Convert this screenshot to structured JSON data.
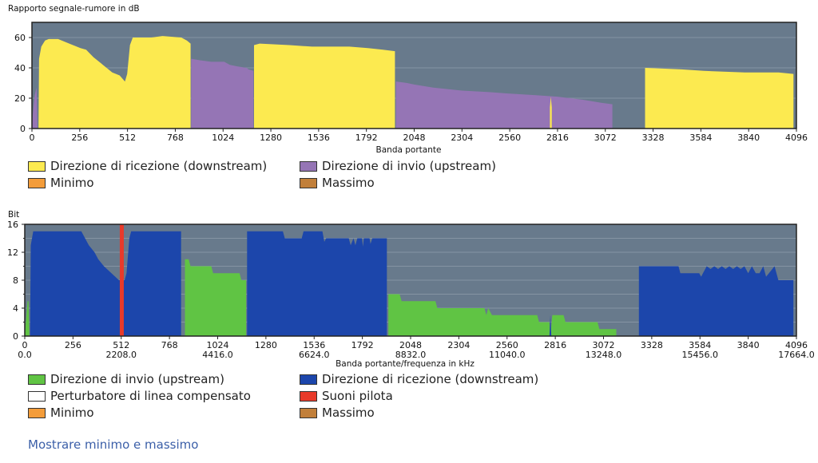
{
  "colors": {
    "plot_bg": "#687a8c",
    "grid": "#8594a3",
    "downstream_yellow": "#fcea50",
    "upstream_purple": "#9575b5",
    "downstream_blue": "#1c46ab",
    "upstream_green": "#60c444",
    "pilot_red": "#e83a2a",
    "minimum": "#f39c3a",
    "maximum": "#c17f3a",
    "crosstalk": "#ffffff"
  },
  "chart_data": [
    {
      "type": "area",
      "title": "Rapporto segnale-rumore in dB",
      "xlabel": "Banda portante",
      "xlim": [
        0,
        4096
      ],
      "ylim": [
        0,
        70
      ],
      "xticks": [
        0,
        256,
        512,
        768,
        1024,
        1280,
        1536,
        1792,
        2048,
        2304,
        2560,
        2816,
        3072,
        3328,
        3584,
        3840,
        4096
      ],
      "yticks": [
        0,
        20,
        40,
        60
      ],
      "grid": true,
      "series": [
        {
          "name": "Direzione di invio (upstream)",
          "color": "#9575b5",
          "segments": [
            [
              [
                0,
                0
              ],
              [
                5,
                10
              ],
              [
                15,
                22
              ],
              [
                25,
                27
              ],
              [
                30,
                0
              ]
            ],
            [
              [
                853,
                46
              ],
              [
                900,
                45
              ],
              [
                960,
                44
              ],
              [
                1030,
                44
              ],
              [
                1060,
                42
              ],
              [
                1100,
                41
              ],
              [
                1150,
                40
              ],
              [
                1160,
                39
              ],
              [
                1187,
                38
              ]
            ],
            [
              [
                1950,
                31
              ],
              [
                2010,
                30
              ],
              [
                2048,
                29
              ],
              [
                2150,
                27
              ],
              [
                2304,
                25
              ],
              [
                2450,
                24
              ],
              [
                2560,
                23
              ],
              [
                2700,
                22
              ],
              [
                2816,
                21
              ],
              [
                2950,
                19
              ],
              [
                3050,
                17
              ],
              [
                3110,
                16
              ]
            ]
          ]
        },
        {
          "name": "Direzione di ricezione (downstream)",
          "color": "#fcea50",
          "segments": [
            [
              [
                35,
                0
              ],
              [
                38,
                46
              ],
              [
                50,
                54
              ],
              [
                70,
                58
              ],
              [
                90,
                59
              ],
              [
                140,
                59
              ],
              [
                200,
                56
              ],
              [
                260,
                53
              ],
              [
                290,
                52
              ],
              [
                330,
                47
              ],
              [
                380,
                42
              ],
              [
                430,
                37
              ],
              [
                470,
                35
              ],
              [
                498,
                31
              ],
              [
                510,
                36
              ],
              [
                525,
                55
              ],
              [
                540,
                60
              ],
              [
                640,
                60
              ],
              [
                700,
                61
              ],
              [
                800,
                60
              ],
              [
                830,
                58
              ],
              [
                850,
                56
              ]
            ],
            [
              [
                1190,
                55
              ],
              [
                1220,
                56
              ],
              [
                1380,
                55
              ],
              [
                1500,
                54
              ],
              [
                1700,
                54
              ],
              [
                1800,
                53
              ],
              [
                1880,
                52
              ],
              [
                1945,
                51
              ]
            ],
            [
              [
                2775,
                14
              ],
              [
                2780,
                21
              ],
              [
                2785,
                14
              ]
            ],
            [
              [
                3285,
                40
              ],
              [
                3480,
                39
              ],
              [
                3600,
                38
              ],
              [
                3820,
                37
              ],
              [
                4000,
                37
              ],
              [
                4080,
                36
              ]
            ]
          ]
        }
      ],
      "legend": [
        "Direzione di ricezione (downstream)",
        "Direzione di invio (upstream)",
        "Minimo",
        "Massimo"
      ]
    },
    {
      "type": "area",
      "title": "Bit",
      "xlabel": "Banda portante/frequenza in kHz",
      "xlim": [
        0,
        4096
      ],
      "ylim": [
        0,
        16
      ],
      "xticks": [
        0,
        256,
        512,
        768,
        1024,
        1280,
        1536,
        1792,
        2048,
        2304,
        2560,
        2816,
        3072,
        3328,
        3584,
        3840,
        4096
      ],
      "freq_ticks": {
        "0": "0.0",
        "512": "2208.0",
        "1024": "4416.0",
        "1536": "6624.0",
        "2048": "8832.0",
        "2560": "11040.0",
        "3072": "13248.0",
        "3584": "15456.0",
        "4096": "17664.0"
      },
      "yticks": [
        0,
        4,
        8,
        12,
        16
      ],
      "grid": true,
      "pilot_tones": [
        515
      ],
      "series": [
        {
          "name": "Direzione di invio (upstream)",
          "color": "#60c444",
          "segments": [
            [
              [
                0,
                0
              ],
              [
                15,
                5
              ],
              [
                20,
                5
              ],
              [
                25,
                0
              ]
            ],
            [
              [
                850,
                11
              ],
              [
                870,
                11
              ],
              [
                880,
                10
              ],
              [
                990,
                10
              ],
              [
                1000,
                9
              ],
              [
                1140,
                9
              ],
              [
                1150,
                8
              ],
              [
                1175,
                8
              ]
            ],
            [
              [
                1930,
                6
              ],
              [
                1990,
                6
              ],
              [
                2000,
                5
              ],
              [
                2180,
                5
              ],
              [
                2190,
                4
              ],
              [
                2440,
                4
              ],
              [
                2450,
                3
              ],
              [
                2460,
                4
              ],
              [
                2480,
                3
              ],
              [
                2720,
                3
              ],
              [
                2730,
                2
              ],
              [
                2785,
                2
              ],
              [
                2790,
                0
              ],
              [
                2800,
                3
              ],
              [
                2860,
                3
              ],
              [
                2870,
                2
              ],
              [
                3040,
                2
              ],
              [
                3050,
                1
              ],
              [
                3140,
                1
              ]
            ]
          ]
        },
        {
          "name": "Direzione di ricezione (downstream)",
          "color": "#1c46ab",
          "segments": [
            [
              [
                28,
                0
              ],
              [
                32,
                13
              ],
              [
                45,
                15
              ],
              [
                300,
                15
              ],
              [
                320,
                14
              ],
              [
                340,
                13
              ],
              [
                370,
                12
              ],
              [
                390,
                11
              ],
              [
                420,
                10
              ],
              [
                460,
                9
              ],
              [
                500,
                8
              ],
              [
                530,
                8
              ],
              [
                540,
                9
              ],
              [
                555,
                14
              ],
              [
                565,
                15
              ],
              [
                830,
                15
              ]
            ],
            [
              [
                1180,
                15
              ],
              [
                1370,
                15
              ],
              [
                1380,
                14
              ],
              [
                1470,
                14
              ],
              [
                1480,
                15
              ],
              [
                1580,
                15
              ],
              [
                1590,
                13.5
              ],
              [
                1600,
                14
              ],
              [
                1720,
                14
              ],
              [
                1730,
                13
              ],
              [
                1745,
                14
              ],
              [
                1755,
                13
              ],
              [
                1765,
                14
              ],
              [
                1790,
                14
              ],
              [
                1795,
                12.8
              ],
              [
                1800,
                14
              ],
              [
                1830,
                14
              ],
              [
                1835,
                13.2
              ],
              [
                1845,
                14
              ],
              [
                1922,
                14
              ]
            ],
            [
              [
                2785,
                0
              ],
              [
                2790,
                3
              ],
              [
                2795,
                0
              ]
            ],
            [
              [
                3260,
                10
              ],
              [
                3470,
                10
              ],
              [
                3480,
                9
              ],
              [
                3580,
                9
              ],
              [
                3590,
                8.5
              ],
              [
                3600,
                9
              ],
              [
                3620,
                10
              ],
              [
                3640,
                9.6
              ],
              [
                3660,
                10
              ],
              [
                3680,
                9.6
              ],
              [
                3700,
                10
              ],
              [
                3720,
                9.6
              ],
              [
                3740,
                10
              ],
              [
                3760,
                9.6
              ],
              [
                3780,
                10
              ],
              [
                3800,
                9.6
              ],
              [
                3820,
                10
              ],
              [
                3840,
                9
              ],
              [
                3860,
                10
              ],
              [
                3880,
                9
              ],
              [
                3900,
                9
              ],
              [
                3920,
                10
              ],
              [
                3935,
                8.5
              ],
              [
                3950,
                9
              ],
              [
                3980,
                10
              ],
              [
                4000,
                8
              ],
              [
                4080,
                8
              ]
            ]
          ]
        }
      ],
      "legend": [
        "Direzione di invio (upstream)",
        "Direzione di ricezione (downstream)",
        "Perturbatore di linea compensato",
        "Suoni pilota",
        "Minimo",
        "Massimo"
      ]
    }
  ],
  "legends": {
    "top": [
      {
        "label": "Direzione di ricezione (downstream)",
        "color": "#fcea50"
      },
      {
        "label": "Direzione di invio (upstream)",
        "color": "#9575b5"
      },
      {
        "label": "Minimo",
        "color": "#f39c3a"
      },
      {
        "label": "Massimo",
        "color": "#c17f3a"
      }
    ],
    "bottom": [
      {
        "label": "Direzione di invio (upstream)",
        "color": "#60c444"
      },
      {
        "label": "Direzione di ricezione (downstream)",
        "color": "#1c46ab"
      },
      {
        "label": "Perturbatore di linea compensato",
        "color": "#ffffff"
      },
      {
        "label": "Suoni pilota",
        "color": "#e83a2a"
      },
      {
        "label": "Minimo",
        "color": "#f39c3a"
      },
      {
        "label": "Massimo",
        "color": "#c17f3a"
      }
    ]
  },
  "show_minmax_link": "Mostrare minimo e massimo"
}
